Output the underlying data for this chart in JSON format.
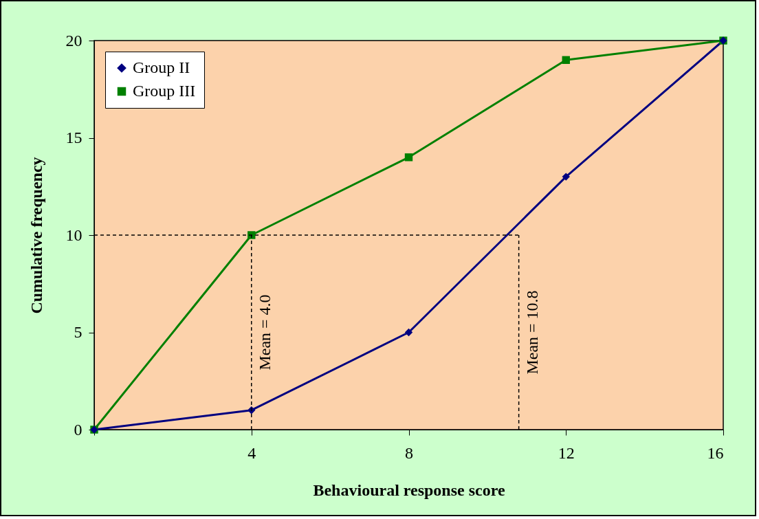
{
  "chart_data": {
    "type": "line",
    "xlabel": "Behavioural response score",
    "ylabel": "Cumulative frequency",
    "x": [
      0,
      4,
      8,
      12,
      16
    ],
    "series": [
      {
        "name": "Group II",
        "color": "#000080",
        "marker": "diamond",
        "values": [
          0,
          1,
          5,
          13,
          20
        ]
      },
      {
        "name": "Group III",
        "color": "#008000",
        "marker": "square",
        "values": [
          0,
          10,
          14,
          19,
          20
        ]
      }
    ],
    "xlim": [
      0,
      16
    ],
    "xticks": [
      {
        "value": 0,
        "label": null
      },
      4,
      8,
      12,
      16
    ],
    "ylim": [
      0,
      20
    ],
    "yticks": [
      0,
      5,
      10,
      15,
      20
    ],
    "legend": "top left",
    "ref_lines": [
      {
        "axis": "x",
        "value": 4,
        "label": "Mean = 4.0",
        "line_style": "dashed",
        "color": "#000000"
      },
      {
        "axis": "x",
        "value": 10.8,
        "label": "Mean = 10.8",
        "line_style": "dashed",
        "color": "#000000"
      },
      {
        "axis": "y",
        "value": 10,
        "line_style": "dashed",
        "color": "#000000"
      }
    ]
  }
}
